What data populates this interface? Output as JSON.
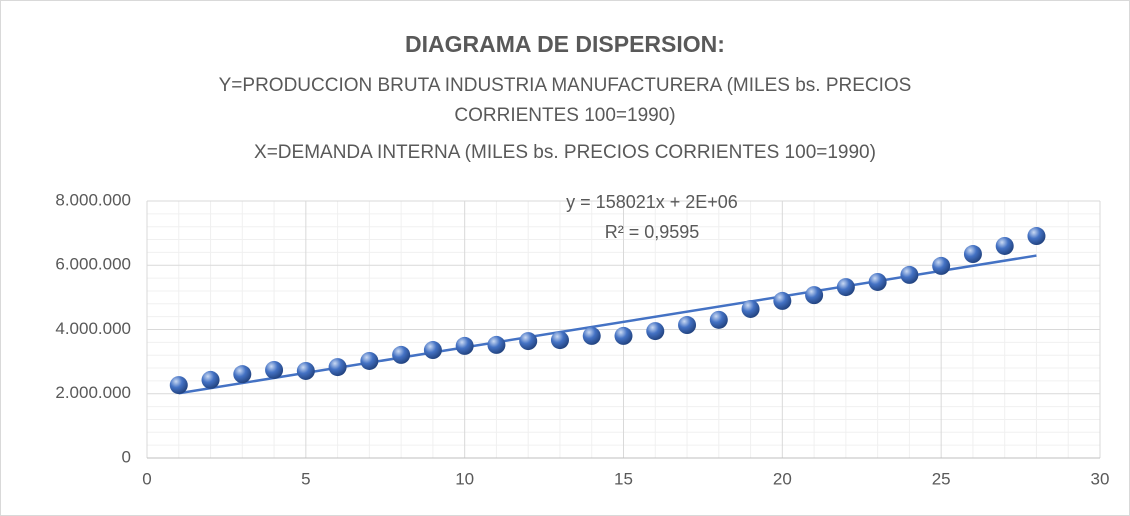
{
  "chart_data": {
    "type": "scatter",
    "title": "DIAGRAMA DE DISPERSION:",
    "subtitle": [
      "Y=PRODUCCION BRUTA INDUSTRIA MANUFACTURERA (MILES bs. PRECIOS",
      "CORRIENTES 100=1990)",
      "X=DEMANDA INTERNA (MILES bs. PRECIOS CORRIENTES 100=1990)"
    ],
    "annotations": [
      "y = 158021x + 2E+06",
      "R² = 0,9595"
    ],
    "trendline": true,
    "grid": true,
    "minor_grid": true,
    "color": "#4472c4",
    "x": [
      1,
      2,
      3,
      4,
      5,
      6,
      7,
      8,
      9,
      10,
      11,
      12,
      13,
      14,
      15,
      16,
      17,
      18,
      19,
      20,
      21,
      22,
      23,
      24,
      25,
      26,
      27,
      28
    ],
    "values": [
      2270000,
      2430000,
      2610000,
      2740000,
      2710000,
      2830000,
      3020000,
      3210000,
      3360000,
      3490000,
      3520000,
      3640000,
      3670000,
      3800000,
      3800000,
      3950000,
      4140000,
      4300000,
      4640000,
      4890000,
      5070000,
      5320000,
      5480000,
      5700000,
      5980000,
      6350000,
      6600000,
      6910000
    ],
    "xlim": [
      0,
      30
    ],
    "xticks": [
      0,
      5,
      10,
      15,
      20,
      25,
      30
    ],
    "ylim": [
      0,
      8000000
    ],
    "yticks": [
      0,
      {
        "value": 2000000,
        "label": "2.000.000"
      },
      {
        "value": 4000000,
        "label": "4.000.000"
      },
      {
        "value": 6000000,
        "label": "6.000.000"
      },
      {
        "value": 8000000,
        "label": "8.000.000"
      }
    ]
  }
}
